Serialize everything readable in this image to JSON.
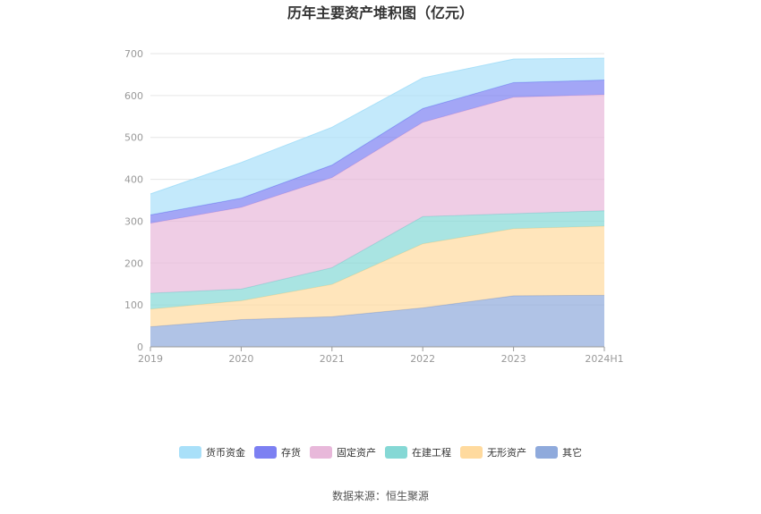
{
  "chart_data": {
    "type": "area",
    "stacked": true,
    "title": "历年主要资产堆积图（亿元）",
    "categories": [
      "2019",
      "2020",
      "2021",
      "2022",
      "2023",
      "2024H1"
    ],
    "ylim": [
      0,
      700
    ],
    "yticks": [
      0,
      100,
      200,
      300,
      400,
      500,
      600,
      700
    ],
    "grid": true,
    "legend_position": "bottom",
    "series": [
      {
        "name": "其它",
        "color": "#8FAADC",
        "values": [
          48,
          65,
          72,
          93,
          122,
          123
        ]
      },
      {
        "name": "无形资产",
        "color": "#FFDA9E",
        "values": [
          42,
          45,
          77,
          153,
          160,
          165
        ]
      },
      {
        "name": "在建工程",
        "color": "#85D8D5",
        "values": [
          38,
          28,
          40,
          65,
          36,
          37
        ]
      },
      {
        "name": "固定资产",
        "color": "#E8B8DA",
        "values": [
          167,
          195,
          215,
          225,
          278,
          277
        ]
      },
      {
        "name": "存货",
        "color": "#7C80F2",
        "values": [
          20,
          22,
          30,
          33,
          35,
          35
        ]
      },
      {
        "name": "货币资金",
        "color": "#A9E0F9",
        "values": [
          50,
          85,
          90,
          73,
          56,
          52
        ]
      }
    ],
    "legend_order": [
      "货币资金",
      "存货",
      "固定资产",
      "在建工程",
      "无形资产",
      "其它"
    ]
  },
  "footer": {
    "source": "数据来源：恒生聚源"
  }
}
